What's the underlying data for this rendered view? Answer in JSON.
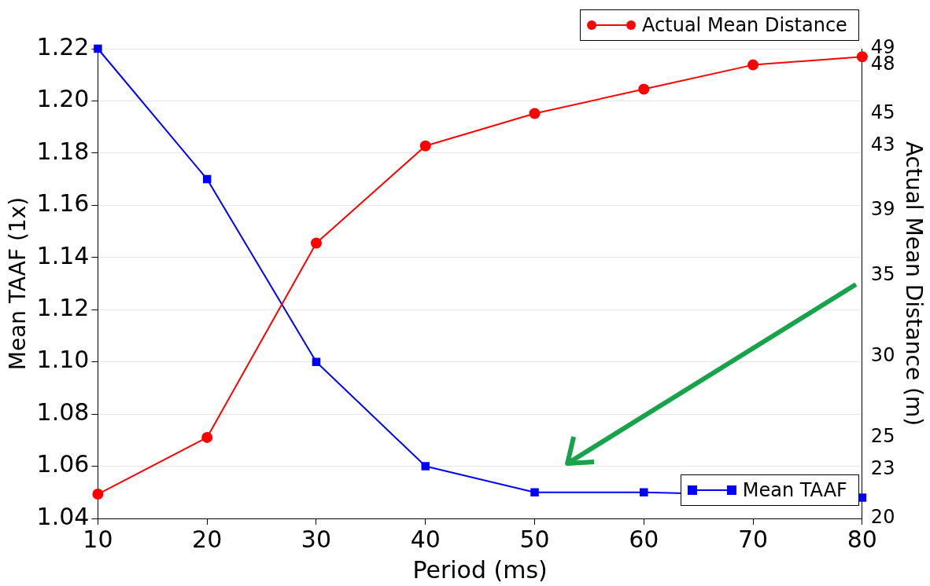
{
  "chart_data": {
    "type": "line",
    "xlabel": "Period (ms)",
    "ylabel": "Mean TAAF (1x)",
    "y2label": "Actual Mean Distance (m)",
    "x": [
      10,
      20,
      30,
      40,
      50,
      60,
      70,
      80
    ],
    "series": [
      {
        "name": "Actual Mean Distance",
        "color": "#ff0000",
        "marker": "circle",
        "axis": "y2",
        "values": [
          21.5,
          25,
          37,
          43,
          45,
          46.5,
          48,
          48.5
        ]
      },
      {
        "name": "Mean TAAF",
        "color": "#0000ff",
        "marker": "square",
        "values": [
          1.22,
          1.17,
          1.1,
          1.06,
          1.05,
          1.05,
          null,
          1.048
        ]
      }
    ],
    "xlim": [
      10,
      80
    ],
    "xticks": [
      10,
      20,
      30,
      40,
      50,
      60,
      70,
      80
    ],
    "ylim": [
      1.04,
      1.22
    ],
    "yticks": [
      1.04,
      1.06,
      1.08,
      {
        "value": 1.1,
        "label": "1.10"
      },
      1.12,
      1.14,
      1.16,
      1.18,
      {
        "value": 1.2,
        "label": "1.20"
      },
      1.22
    ],
    "y2lim": [
      20,
      49
    ],
    "y2ticks": [
      20,
      23,
      25,
      30,
      35,
      39,
      43,
      45,
      48,
      49
    ],
    "grid": "y",
    "legend": "top right",
    "line_style": "solid"
  }
}
